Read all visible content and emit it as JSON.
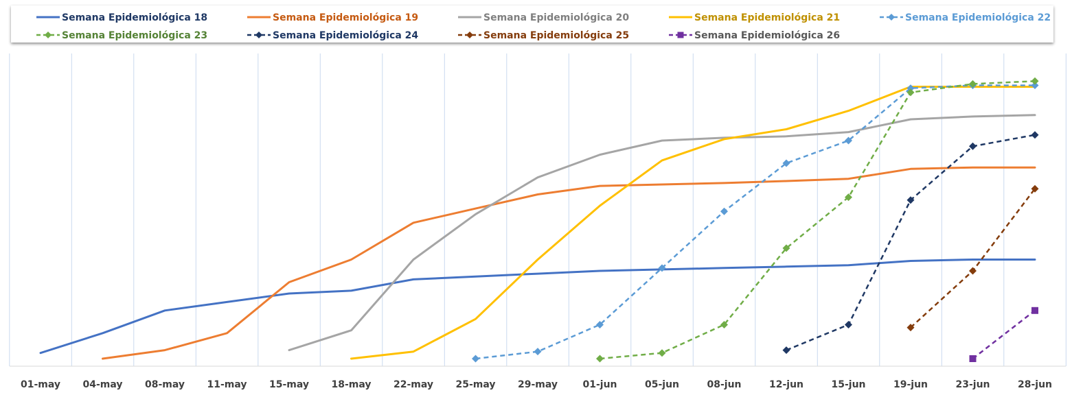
{
  "chart_data": {
    "type": "line",
    "title": "",
    "xlabel": "",
    "ylabel": "",
    "categories": [
      "01-may",
      "04-may",
      "08-may",
      "11-may",
      "15-may",
      "18-may",
      "22-may",
      "25-may",
      "29-may",
      "01-jun",
      "05-jun",
      "08-jun",
      "12-jun",
      "15-jun",
      "19-jun",
      "23-jun",
      "28-jun"
    ],
    "ylim": [
      0,
      1
    ],
    "grid": "vertical",
    "legend": "top",
    "series": [
      {
        "name": "Semana Epidemiológica 18",
        "color": "#4472C4",
        "style": "solid",
        "marker": "none",
        "text_color": "#1F3864",
        "values": [
          0.02,
          0.09,
          0.17,
          0.2,
          0.23,
          0.24,
          0.28,
          0.29,
          0.3,
          0.31,
          0.315,
          0.32,
          0.325,
          0.33,
          0.345,
          0.35,
          0.35
        ]
      },
      {
        "name": "Semana Epidemiológica 19",
        "color": "#ED7D31",
        "style": "solid",
        "marker": "none",
        "text_color": "#C55A11",
        "values": [
          null,
          0.0,
          0.03,
          0.09,
          0.27,
          0.35,
          0.48,
          0.53,
          0.58,
          0.61,
          0.615,
          0.62,
          0.627,
          0.635,
          0.67,
          0.675,
          0.675
        ]
      },
      {
        "name": "Semana Epidemiológica 20",
        "color": "#A5A5A5",
        "style": "solid",
        "marker": "none",
        "text_color": "#7F7F7F",
        "values": [
          null,
          null,
          null,
          null,
          0.03,
          0.1,
          0.35,
          0.51,
          0.64,
          0.72,
          0.77,
          0.78,
          0.785,
          0.8,
          0.845,
          0.855,
          0.86
        ]
      },
      {
        "name": "Semana Epidemiológica 21",
        "color": "#FFC000",
        "style": "solid",
        "marker": "none",
        "text_color": "#BF9000",
        "values": [
          null,
          null,
          null,
          null,
          null,
          0.0,
          0.025,
          0.14,
          0.35,
          0.54,
          0.7,
          0.775,
          0.81,
          0.875,
          0.96,
          0.96,
          0.96
        ]
      },
      {
        "name": "Semana Epidemiológica 22",
        "color": "#5B9BD5",
        "style": "dashed",
        "marker": "diamond",
        "text_color": "#5B9BD5",
        "values": [
          null,
          null,
          null,
          null,
          null,
          null,
          null,
          0.0,
          0.025,
          0.12,
          0.32,
          0.52,
          0.69,
          0.77,
          0.955,
          0.965,
          0.965
        ]
      },
      {
        "name": "Semana Epidemiológica 23",
        "color": "#70AD47",
        "style": "dashed",
        "marker": "diamond",
        "text_color": "#548235",
        "values": [
          null,
          null,
          null,
          null,
          null,
          null,
          null,
          null,
          null,
          0.0,
          0.02,
          0.12,
          0.39,
          0.57,
          0.94,
          0.97,
          0.98
        ]
      },
      {
        "name": "Semana Epidemiológica 24",
        "color": "#1F3864",
        "style": "dashed",
        "marker": "diamond",
        "text_color": "#1F3864",
        "values": [
          null,
          null,
          null,
          null,
          null,
          null,
          null,
          null,
          null,
          null,
          null,
          null,
          0.03,
          0.12,
          0.56,
          0.75,
          0.79
        ]
      },
      {
        "name": "Semana Epidemiológica 25",
        "color": "#843C0C",
        "style": "dashed",
        "marker": "diamond",
        "text_color": "#843C0C",
        "values": [
          null,
          null,
          null,
          null,
          null,
          null,
          null,
          null,
          null,
          null,
          null,
          null,
          null,
          null,
          0.11,
          0.31,
          0.6
        ]
      },
      {
        "name": "Semana Epidemiológica 26",
        "color": "#7030A0",
        "style": "dashed",
        "marker": "square",
        "text_color": "#595959",
        "values": [
          null,
          null,
          null,
          null,
          null,
          null,
          null,
          null,
          null,
          null,
          null,
          null,
          null,
          null,
          null,
          0.0,
          0.17
        ]
      }
    ]
  }
}
